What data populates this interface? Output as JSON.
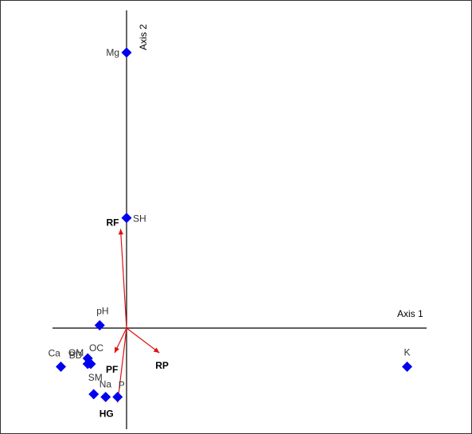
{
  "chart_data": {
    "type": "scatter",
    "x_axis_title": "Axis 1",
    "y_axis_title": "Axis 2",
    "marker_color": "#0000ee",
    "vector_color": "#e01010",
    "points": [
      {
        "label": "Mg",
        "x": 0.0,
        "y": 1.0
      },
      {
        "label": "SH",
        "x": 0.0,
        "y": 0.4
      },
      {
        "label": "pH",
        "x": -0.09,
        "y": 0.01
      },
      {
        "label": "BD",
        "x": -0.13,
        "y": -0.11
      },
      {
        "label": "OM",
        "x": -0.13,
        "y": -0.13
      },
      {
        "label": "OC",
        "x": -0.12,
        "y": -0.13
      },
      {
        "label": "Ca",
        "x": -0.22,
        "y": -0.14
      },
      {
        "label": "SM",
        "x": -0.11,
        "y": -0.24
      },
      {
        "label": "Na",
        "x": -0.07,
        "y": -0.25
      },
      {
        "label": "P",
        "x": -0.03,
        "y": -0.25
      },
      {
        "label": "K",
        "x": 0.94,
        "y": -0.14
      }
    ],
    "vectors": [
      {
        "label": "RF",
        "x": -0.02,
        "y": 0.36
      },
      {
        "label": "RP",
        "x": 0.11,
        "y": -0.09
      },
      {
        "label": "PF",
        "x": -0.04,
        "y": -0.09
      },
      {
        "label": "HG",
        "x": -0.03,
        "y": -0.27
      }
    ]
  }
}
